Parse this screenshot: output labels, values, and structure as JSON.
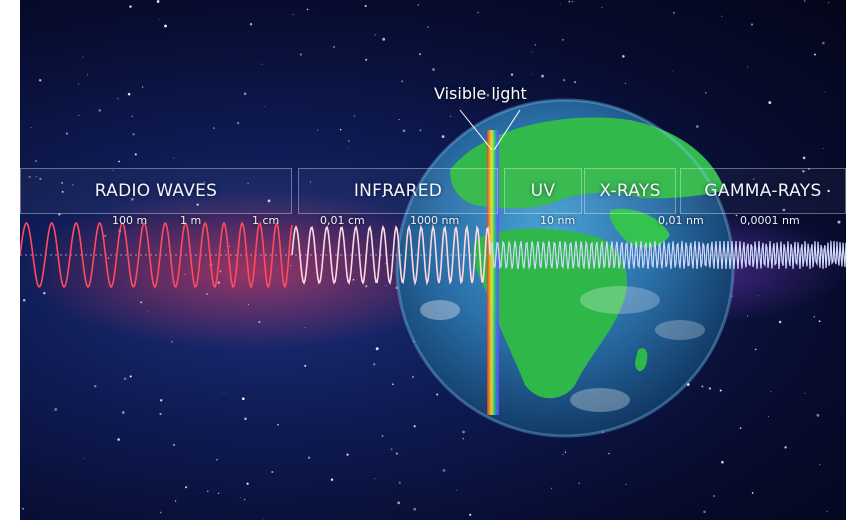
{
  "labels": {
    "visible_light": "Visible light"
  },
  "bands": [
    {
      "id": "radio",
      "label": "RADIO WAVES"
    },
    {
      "id": "infrared",
      "label": "INFRARED"
    },
    {
      "id": "uv",
      "label": "UV"
    },
    {
      "id": "xrays",
      "label": "X-RAYS"
    },
    {
      "id": "gamma",
      "label": "GAMMA-RAYS"
    }
  ],
  "scale_labels": [
    "100 m",
    "1 m",
    "1 cm",
    "0,01 cm",
    "1000 nm",
    "10 nm",
    "0,01 nm",
    "0,0001 nm"
  ],
  "colors": {
    "radio_wave": "#ff4b5c",
    "infrared_wave": "#ffd7e0",
    "high_energy_wave": "#cfd8ff",
    "earth_ocean": "#2a6fa8",
    "earth_land": "#2fb84a"
  }
}
